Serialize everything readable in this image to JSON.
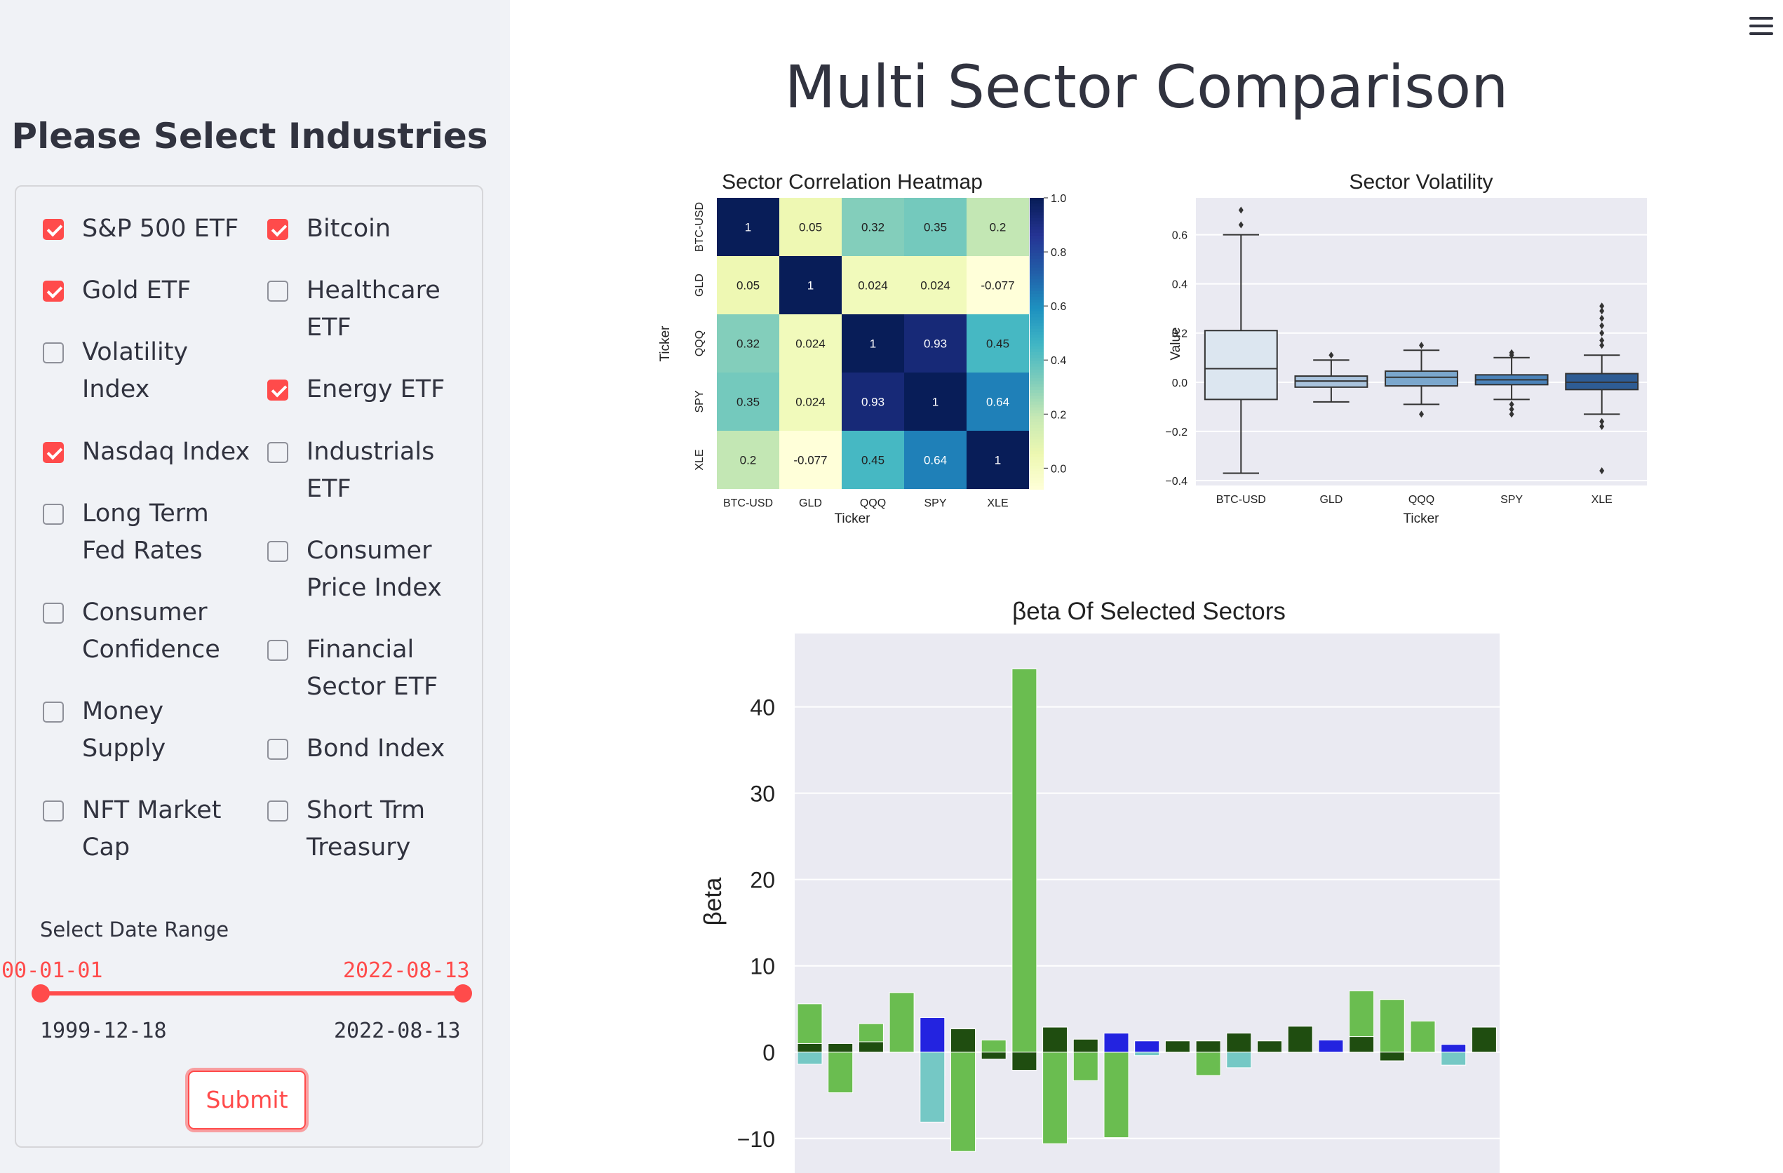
{
  "sidebar": {
    "title": "Please Select Industries",
    "checkboxes": [
      {
        "label": "S&P 500 ETF",
        "checked": true
      },
      {
        "label": "Bitcoin",
        "checked": true
      },
      {
        "label": "Gold ETF",
        "checked": true
      },
      {
        "label": "Healthcare ETF",
        "checked": false
      },
      {
        "label": "Volatility Index",
        "checked": false
      },
      {
        "label": "Energy ETF",
        "checked": true
      },
      {
        "label": "Nasdaq Index",
        "checked": true
      },
      {
        "label": "Industrials ETF",
        "checked": false
      },
      {
        "label": "Long Term Fed Rates",
        "checked": false
      },
      {
        "label": "Consumer Price Index",
        "checked": false
      },
      {
        "label": "Consumer Confidence",
        "checked": false
      },
      {
        "label": "Financial Sector ETF",
        "checked": false
      },
      {
        "label": "Money Supply",
        "checked": false
      },
      {
        "label": "Bond Index",
        "checked": false
      },
      {
        "label": "NFT Market Cap",
        "checked": false
      },
      {
        "label": "Short Trm Treasury",
        "checked": false
      }
    ],
    "date_range": {
      "label": "Select Date Range",
      "selected_start": "00-01-01",
      "selected_end": "2022-08-13",
      "min": "1999-12-18",
      "max": "2022-08-13"
    },
    "submit_label": "Submit"
  },
  "main": {
    "title": "Multi Sector Comparison"
  },
  "colors": {
    "accent": "#ff4b4b",
    "sidebar_bg": "#f0f2f6",
    "text": "#31333f",
    "plot_bg": "#eaeaf2"
  },
  "chart_data": [
    {
      "type": "heatmap",
      "title": "Sector Correlation Heatmap",
      "xlabel": "Ticker",
      "ylabel": "Ticker",
      "x_categories": [
        "BTC-USD",
        "GLD",
        "QQQ",
        "SPY",
        "XLE"
      ],
      "y_categories": [
        "BTC-USD",
        "GLD",
        "QQQ",
        "SPY",
        "XLE"
      ],
      "values": [
        [
          1,
          0.05,
          0.32,
          0.35,
          0.2
        ],
        [
          0.05,
          1,
          0.024,
          0.024,
          -0.077
        ],
        [
          0.32,
          0.024,
          1,
          0.93,
          0.45
        ],
        [
          0.35,
          0.024,
          0.93,
          1,
          0.64
        ],
        [
          0.2,
          -0.077,
          0.45,
          0.64,
          1
        ]
      ],
      "labels": [
        [
          "1",
          "0.05",
          "0.32",
          "0.35",
          "0.2"
        ],
        [
          "0.05",
          "1",
          "0.024",
          "0.024",
          "-0.077"
        ],
        [
          "0.32",
          "0.024",
          "1",
          "0.93",
          "0.45"
        ],
        [
          "0.35",
          "0.024",
          "0.93",
          "1",
          "0.64"
        ],
        [
          "0.2",
          "-0.077",
          "0.45",
          "0.64",
          "1"
        ]
      ],
      "colorbar_ticks": [
        "1.0",
        "0.8",
        "0.6",
        "0.4",
        "0.2",
        "0.0"
      ],
      "colorbar_values": [
        1.0,
        0.8,
        0.6,
        0.4,
        0.2,
        0.0
      ],
      "vmin": -0.077,
      "vmax": 1.0,
      "colormap": "YlGnBu"
    },
    {
      "type": "box",
      "title": "Sector Volatility",
      "xlabel": "Ticker",
      "ylabel": "Value",
      "categories": [
        "BTC-USD",
        "GLD",
        "QQQ",
        "SPY",
        "XLE"
      ],
      "ylim": [
        -0.42,
        0.75
      ],
      "yticks": [
        0.6,
        0.4,
        0.2,
        0.0,
        -0.2,
        -0.4
      ],
      "ytick_labels": [
        "0.6",
        "0.4",
        "0.2",
        "0.0",
        "−0.2",
        "−0.4"
      ],
      "colors": [
        "#dce6f0",
        "#a9c3dd",
        "#7ba7cd",
        "#4a82b9",
        "#2e5c94"
      ],
      "boxes": [
        {
          "whislo": -0.37,
          "q1": -0.07,
          "med": 0.055,
          "q3": 0.21,
          "whishi": 0.6,
          "fliers": [
            0.7,
            0.64
          ]
        },
        {
          "whislo": -0.08,
          "q1": -0.02,
          "med": 0.005,
          "q3": 0.025,
          "whishi": 0.09,
          "fliers": [
            0.11
          ]
        },
        {
          "whislo": -0.09,
          "q1": -0.015,
          "med": 0.02,
          "q3": 0.045,
          "whishi": 0.13,
          "fliers": [
            0.15,
            -0.13
          ]
        },
        {
          "whislo": -0.07,
          "q1": -0.01,
          "med": 0.01,
          "q3": 0.03,
          "whishi": 0.1,
          "fliers": [
            0.12,
            0.11,
            -0.09,
            -0.11,
            -0.13
          ]
        },
        {
          "whislo": -0.13,
          "q1": -0.03,
          "med": 0.0,
          "q3": 0.035,
          "whishi": 0.11,
          "fliers": [
            0.31,
            0.29,
            0.26,
            0.23,
            0.2,
            0.17,
            0.15,
            -0.16,
            -0.18,
            -0.36
          ]
        }
      ]
    },
    {
      "type": "bar",
      "title": "βeta Of Selected Sectors",
      "xlabel": "",
      "ylabel": "βeta",
      "ylim": [
        -14,
        48.5
      ],
      "yticks": [
        40,
        30,
        20,
        10,
        0,
        -10
      ],
      "ytick_labels": [
        "40",
        "30",
        "20",
        "10",
        "0",
        "−10"
      ],
      "bar_count": 23,
      "series": [
        {
          "name": "light-green",
          "color": "#6abd50",
          "values": [
            5.6,
            -4.7,
            3.3,
            6.9,
            0,
            -11.5,
            1.4,
            44.4,
            -10.6,
            -3.3,
            -9.9,
            0,
            0,
            -2.7,
            0,
            0,
            0,
            0,
            7.1,
            6.1,
            3.6,
            0,
            0
          ]
        },
        {
          "name": "dark-green",
          "color": "#1f4d10",
          "values": [
            1.0,
            1.0,
            1.2,
            0,
            -2.7,
            2.7,
            -0.8,
            -2.1,
            2.9,
            1.5,
            1.0,
            1.0,
            1.3,
            1.3,
            2.2,
            1.3,
            3.0,
            0.9,
            1.8,
            -1.0,
            0,
            0,
            2.9
          ]
        },
        {
          "name": "blue",
          "color": "#2323e0",
          "values": [
            0,
            0,
            0,
            0,
            4.0,
            0,
            0,
            0,
            0,
            0,
            2.2,
            1.3,
            0,
            0,
            0,
            0,
            0,
            1.4,
            0,
            0,
            0,
            0.9,
            0
          ]
        },
        {
          "name": "teal",
          "color": "#75c8c5",
          "values": [
            -1.4,
            0,
            0,
            0,
            -8.1,
            0,
            0,
            0,
            0,
            0,
            0,
            -0.4,
            0,
            0,
            -1.8,
            0,
            0,
            0,
            0,
            0,
            0,
            -1.5,
            0
          ]
        }
      ]
    }
  ]
}
